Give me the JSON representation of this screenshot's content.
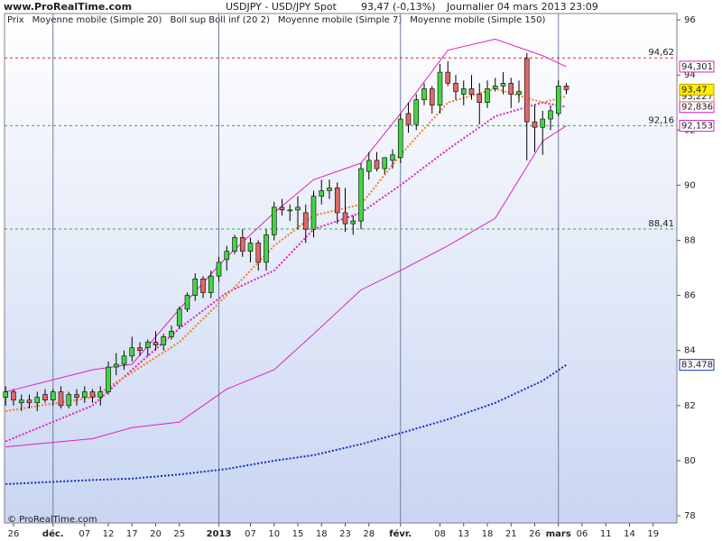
{
  "chart_data": {
    "type": "candlestick",
    "site": "www.ProRealTime.com",
    "title": "USDJPY - USD/JPY Spot",
    "last_price": "93,47 (-0,13%)",
    "period": "Journalier  04 mars 2013 23:09",
    "copyright": "© ProRealTime.com",
    "legend": [
      {
        "text": "Prix",
        "color": "#555555"
      },
      {
        "text": "Moyenne mobile (Simple 20)",
        "color": "#e020c0"
      },
      {
        "text": "Boll sup Boll inf (20 2)",
        "color": "#e020c0"
      },
      {
        "text": "Moyenne mobile (Simple 7)",
        "color": "#f08020"
      },
      {
        "text": "Moyenne mobile (Simple 150)",
        "color": "#1030c0"
      }
    ],
    "xlim": [
      -1.143,
      84
    ],
    "ylim": [
      77.74,
      96.23
    ],
    "yticks": [
      78,
      80,
      82,
      84,
      86,
      88,
      90,
      92,
      94,
      96
    ],
    "xticks": [
      {
        "value": 0,
        "label": "26"
      },
      {
        "value": 5,
        "label": "déc.",
        "line": true
      },
      {
        "value": 9,
        "label": "07"
      },
      {
        "value": 12,
        "label": "12"
      },
      {
        "value": 15,
        "label": "17"
      },
      {
        "value": 18,
        "label": "20"
      },
      {
        "value": 21,
        "label": "25"
      },
      {
        "value": 26,
        "label": "2013",
        "line": true
      },
      {
        "value": 30,
        "label": "07"
      },
      {
        "value": 33,
        "label": "10"
      },
      {
        "value": 36,
        "label": "15"
      },
      {
        "value": 39,
        "label": "18"
      },
      {
        "value": 42,
        "label": "23"
      },
      {
        "value": 45,
        "label": "28"
      },
      {
        "value": 49,
        "label": "févr.",
        "line": true
      },
      {
        "value": 54,
        "label": "08"
      },
      {
        "value": 57,
        "label": "13"
      },
      {
        "value": 60,
        "label": "18"
      },
      {
        "value": 63,
        "label": "21"
      },
      {
        "value": 66,
        "label": "26"
      },
      {
        "value": 69,
        "label": "mars",
        "line": true
      },
      {
        "value": 72,
        "label": "06"
      },
      {
        "value": 75,
        "label": "11"
      },
      {
        "value": 78,
        "label": "14"
      },
      {
        "value": 81,
        "label": "19"
      }
    ],
    "up_color": "#44d444",
    "down_color": "#e06868",
    "x": [
      -1,
      0,
      1,
      2,
      3,
      4,
      5,
      6,
      7,
      8,
      9,
      10,
      11,
      12,
      13,
      14,
      15,
      16,
      17,
      18,
      19,
      20,
      21,
      22,
      23,
      24,
      25,
      26,
      27,
      28,
      29,
      30,
      31,
      32,
      33,
      34,
      35,
      36,
      37,
      38,
      39,
      40,
      41,
      42,
      43,
      44,
      45,
      46,
      47,
      48,
      49,
      50,
      51,
      52,
      53,
      54,
      55,
      56,
      57,
      58,
      59,
      60,
      61,
      62,
      63,
      64,
      65,
      66,
      67,
      68,
      69,
      70
    ],
    "open": [
      82.3,
      82.5,
      82.1,
      82.2,
      82.1,
      82.4,
      82.2,
      82.5,
      82.0,
      82.4,
      82.3,
      82.5,
      82.3,
      82.5,
      83.4,
      83.5,
      83.8,
      84.1,
      84.1,
      84.3,
      84.2,
      84.5,
      84.9,
      85.5,
      86.0,
      86.6,
      86.1,
      86.7,
      87.3,
      87.6,
      88.1,
      87.6,
      87.9,
      87.2,
      88.2,
      89.2,
      89.1,
      89.1,
      89.0,
      88.4,
      89.6,
      89.8,
      89.9,
      89.0,
      88.6,
      88.7,
      90.5,
      90.9,
      90.6,
      90.9,
      91.0,
      92.6,
      92.2,
      93.1,
      93.5,
      92.9,
      94.1,
      93.7,
      93.3,
      93.5,
      93.3,
      93.0,
      93.5,
      93.6,
      93.7,
      93.3,
      94.6,
      92.3,
      92.1,
      92.4,
      92.6,
      93.6
    ],
    "high": [
      82.7,
      82.6,
      82.4,
      82.4,
      82.5,
      82.6,
      82.6,
      82.7,
      82.5,
      82.6,
      82.7,
      82.6,
      82.7,
      83.6,
      83.9,
      84.0,
      84.5,
      84.3,
      84.4,
      84.7,
      84.6,
      84.9,
      85.6,
      86.1,
      86.8,
      86.7,
      86.9,
      87.4,
      87.8,
      88.2,
      88.4,
      88.1,
      88.0,
      88.4,
      89.4,
      89.5,
      89.3,
      89.6,
      89.3,
      89.8,
      90.2,
      90.2,
      90.1,
      89.9,
      88.9,
      90.8,
      91.2,
      91.2,
      91.0,
      91.3,
      92.6,
      93.0,
      93.3,
      93.7,
      93.6,
      94.4,
      94.5,
      94.0,
      93.8,
      94.0,
      93.7,
      93.8,
      93.9,
      94.1,
      93.9,
      93.8,
      94.8,
      92.9,
      92.7,
      92.9,
      93.8,
      93.7
    ],
    "low": [
      82.0,
      82.0,
      81.8,
      81.9,
      81.8,
      82.1,
      82.0,
      81.9,
      81.9,
      82.0,
      82.1,
      82.1,
      82.0,
      82.4,
      83.1,
      83.3,
      83.6,
      83.8,
      83.8,
      84.0,
      84.0,
      84.4,
      84.8,
      85.4,
      85.8,
      85.9,
      85.9,
      86.5,
      86.9,
      87.5,
      87.4,
      87.2,
      86.9,
      86.9,
      88.0,
      88.9,
      88.7,
      88.4,
      87.9,
      88.1,
      89.3,
      89.5,
      88.6,
      88.3,
      88.2,
      88.4,
      90.2,
      90.5,
      90.4,
      90.6,
      90.8,
      91.9,
      92.0,
      92.9,
      92.6,
      92.6,
      93.6,
      93.1,
      92.9,
      93.1,
      92.2,
      92.8,
      93.4,
      93.3,
      92.8,
      93.0,
      90.9,
      91.2,
      91.1,
      92.0,
      92.5,
      93.3
    ],
    "close": [
      82.5,
      82.2,
      82.2,
      82.1,
      82.3,
      82.2,
      82.5,
      82.0,
      82.4,
      82.3,
      82.5,
      82.3,
      82.5,
      83.4,
      83.5,
      83.8,
      84.1,
      84.0,
      84.3,
      84.2,
      84.5,
      84.7,
      85.5,
      86.0,
      86.6,
      86.1,
      86.7,
      87.2,
      87.6,
      88.1,
      87.6,
      87.9,
      87.2,
      88.2,
      89.2,
      89.1,
      89.1,
      89.2,
      88.4,
      89.6,
      89.8,
      89.9,
      89.0,
      88.6,
      88.7,
      90.6,
      90.9,
      90.6,
      91.0,
      91.1,
      92.4,
      92.2,
      93.1,
      93.5,
      92.9,
      94.1,
      93.7,
      93.4,
      93.5,
      93.3,
      93.0,
      93.5,
      93.6,
      93.7,
      93.3,
      93.4,
      92.3,
      92.1,
      92.4,
      92.7,
      93.6,
      93.47
    ],
    "last_label": "93,47",
    "hlines": [
      {
        "value": 94.62,
        "label": "94,62",
        "color": "#d03030"
      },
      {
        "value": 92.16,
        "label": "92,16",
        "color": "#30b030"
      },
      {
        "value": 88.41,
        "label": "88,41",
        "color": "#30b030"
      }
    ],
    "indicators": [
      {
        "color": "#e020c0",
        "dash": false,
        "x": [
          -1,
          10,
          15,
          21,
          27,
          33,
          38,
          44,
          49,
          55,
          61,
          67,
          70
        ],
        "values": [
          82.5,
          83.3,
          83.5,
          85.5,
          87.4,
          89.0,
          90.2,
          90.8,
          92.6,
          94.9,
          95.3,
          94.7,
          94.301
        ],
        "last_label": "94,301"
      },
      {
        "color": "#e020c0",
        "dash": false,
        "x": [
          -1,
          10,
          15,
          21,
          27,
          33,
          38,
          44,
          49,
          55,
          61,
          67,
          70
        ],
        "values": [
          80.5,
          80.8,
          81.2,
          81.4,
          82.6,
          83.3,
          84.6,
          86.2,
          86.9,
          87.8,
          88.8,
          91.6,
          92.153
        ],
        "last_label": "92,153"
      },
      {
        "color": "#e020c0",
        "dash": true,
        "x": [
          -1,
          10,
          15,
          21,
          27,
          33,
          38,
          44,
          49,
          55,
          61,
          67,
          70
        ],
        "values": [
          80.7,
          82.0,
          83.3,
          84.8,
          86.1,
          86.9,
          88.4,
          89.0,
          90.0,
          91.3,
          92.5,
          93.0,
          92.836
        ],
        "last_label": "92,836"
      },
      {
        "color": "#f08020",
        "dash": true,
        "x": [
          -1,
          10,
          15,
          21,
          27,
          33,
          38,
          44,
          49,
          55,
          61,
          67,
          70
        ],
        "values": [
          81.8,
          82.3,
          83.2,
          84.3,
          86.0,
          87.8,
          88.9,
          89.3,
          91.1,
          93.0,
          93.5,
          93.0,
          93.227
        ],
        "last_label": "93,227"
      },
      {
        "color": "#1030c0",
        "dash": true,
        "x": [
          -1,
          10,
          15,
          21,
          27,
          33,
          38,
          44,
          49,
          55,
          61,
          67,
          70
        ],
        "values": [
          79.15,
          79.3,
          79.35,
          79.5,
          79.7,
          80.0,
          80.2,
          80.6,
          81.0,
          81.5,
          82.1,
          82.9,
          83.478
        ],
        "last_label": "83,478"
      }
    ]
  }
}
